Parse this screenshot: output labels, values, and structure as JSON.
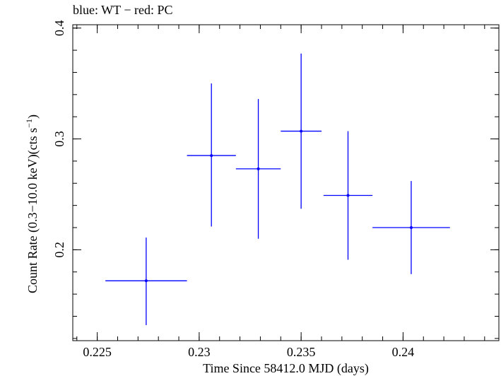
{
  "chart_data": {
    "type": "scatter",
    "title": "blue: WT − red: PC",
    "xlabel": "Time Since 58412.0 MJD (days)",
    "ylabel_main": "Count Rate (0.3−10.0 keV)(cts s",
    "ylabel_sup": "−1",
    "ylabel_close": ")",
    "xlim": [
      0.2238,
      0.2447
    ],
    "ylim": [
      0.118,
      0.403
    ],
    "x_ticks": [
      0.225,
      0.23,
      0.235,
      0.24
    ],
    "x_tick_labels": [
      "0.225",
      "0.23",
      "0.235",
      "0.24"
    ],
    "y_ticks": [
      0.2,
      0.3,
      0.4
    ],
    "y_tick_labels": [
      "0.2",
      "0.3",
      "0.4"
    ],
    "series": [
      {
        "name": "WT",
        "color": "#0000ff",
        "points": [
          {
            "x": 0.2274,
            "y": 0.172,
            "xerr_lo": 0.002,
            "xerr_hi": 0.002,
            "yerr_lo": 0.04,
            "yerr_hi": 0.039
          },
          {
            "x": 0.2306,
            "y": 0.285,
            "xerr_lo": 0.0012,
            "xerr_hi": 0.0012,
            "yerr_lo": 0.064,
            "yerr_hi": 0.065
          },
          {
            "x": 0.2329,
            "y": 0.273,
            "xerr_lo": 0.0011,
            "xerr_hi": 0.0011,
            "yerr_lo": 0.063,
            "yerr_hi": 0.063
          },
          {
            "x": 0.235,
            "y": 0.307,
            "xerr_lo": 0.001,
            "xerr_hi": 0.001,
            "yerr_lo": 0.07,
            "yerr_hi": 0.07
          },
          {
            "x": 0.2373,
            "y": 0.249,
            "xerr_lo": 0.0012,
            "xerr_hi": 0.0012,
            "yerr_lo": 0.058,
            "yerr_hi": 0.058
          },
          {
            "x": 0.2404,
            "y": 0.22,
            "xerr_lo": 0.0019,
            "xerr_hi": 0.0019,
            "yerr_lo": 0.042,
            "yerr_hi": 0.042
          }
        ]
      }
    ]
  }
}
